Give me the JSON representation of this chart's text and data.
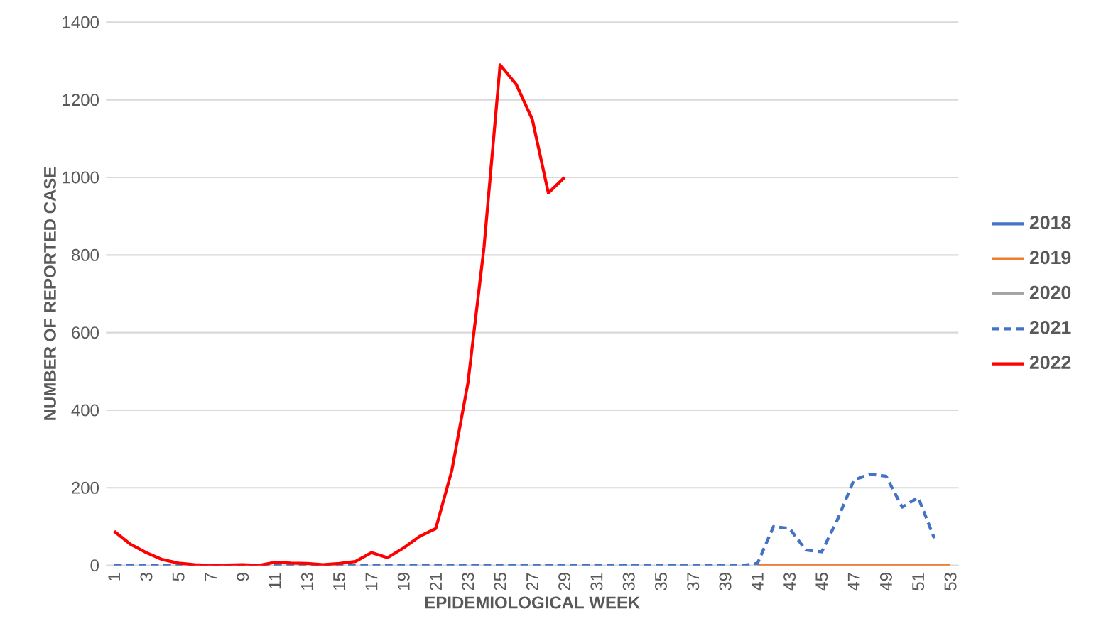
{
  "chart_data": {
    "type": "line",
    "xlabel": "EPIDEMIOLOGICAL WEEK",
    "ylabel": "NUMBER OF REPORTED CASE",
    "categories": [
      "1",
      null,
      "3",
      null,
      "5",
      null,
      "7",
      null,
      "9",
      null,
      "11",
      null,
      "13",
      null,
      "15",
      null,
      "17",
      null,
      "19",
      null,
      "21",
      null,
      "23",
      null,
      "25",
      null,
      "27",
      null,
      "29",
      null,
      "31",
      null,
      "33",
      null,
      "35",
      null,
      "37",
      null,
      "39",
      null,
      "41",
      null,
      "43",
      null,
      "45",
      null,
      "47",
      null,
      "49",
      null,
      "51",
      null,
      "53"
    ],
    "series": [
      {
        "name": "2018",
        "color": "#4472c4",
        "line_style": "solid",
        "values": [
          null,
          null,
          null,
          null,
          null,
          null,
          null,
          null,
          null,
          null,
          null,
          null,
          null,
          null,
          null,
          null,
          null,
          null,
          null,
          null,
          null,
          null,
          null,
          null,
          null,
          null,
          null,
          null,
          null,
          null,
          null,
          null,
          null,
          null,
          null,
          null,
          null,
          null,
          null,
          null,
          null,
          null,
          null,
          null,
          null,
          null,
          null,
          null,
          null,
          null,
          null,
          null,
          null
        ]
      },
      {
        "name": "2019",
        "color": "#ed7d31",
        "line_style": "solid",
        "values": [
          null,
          null,
          null,
          null,
          null,
          null,
          null,
          null,
          null,
          null,
          null,
          null,
          null,
          null,
          null,
          null,
          null,
          null,
          null,
          null,
          null,
          null,
          null,
          null,
          null,
          null,
          null,
          null,
          null,
          null,
          null,
          null,
          null,
          null,
          null,
          null,
          null,
          null,
          null,
          null,
          0,
          0,
          0,
          0,
          0,
          0,
          0,
          0,
          0,
          0,
          0,
          0,
          0
        ]
      },
      {
        "name": "2020",
        "color": "#a5a5a5",
        "line_style": "solid",
        "values": [
          null,
          null,
          null,
          null,
          null,
          null,
          null,
          null,
          null,
          null,
          null,
          null,
          null,
          null,
          null,
          null,
          null,
          null,
          null,
          null,
          null,
          null,
          null,
          null,
          null,
          null,
          null,
          null,
          null,
          null,
          null,
          null,
          null,
          null,
          null,
          null,
          null,
          null,
          null,
          null,
          null,
          null,
          null,
          null,
          null,
          null,
          null,
          null,
          null,
          null,
          null,
          null,
          null
        ]
      },
      {
        "name": "2021",
        "color": "#4472c4",
        "line_style": "dashed",
        "values": [
          0,
          0,
          0,
          0,
          0,
          0,
          0,
          0,
          0,
          0,
          0,
          0,
          0,
          0,
          0,
          0,
          0,
          0,
          0,
          0,
          0,
          0,
          0,
          0,
          0,
          0,
          0,
          0,
          0,
          0,
          0,
          0,
          0,
          0,
          0,
          0,
          0,
          0,
          0,
          0,
          5,
          100,
          95,
          40,
          35,
          120,
          220,
          235,
          230,
          150,
          175,
          70,
          null
        ]
      },
      {
        "name": "2022",
        "color": "#ff0000",
        "line_style": "solid",
        "values": [
          88,
          55,
          33,
          15,
          6,
          2,
          0,
          1,
          2,
          0,
          8,
          6,
          5,
          2,
          5,
          10,
          33,
          20,
          45,
          75,
          95,
          245,
          470,
          820,
          1290,
          1240,
          1150,
          960,
          1000,
          null,
          null,
          null,
          null,
          null,
          null,
          null,
          null,
          null,
          null,
          null,
          null,
          null,
          null,
          null,
          null,
          null,
          null,
          null,
          null,
          null,
          null,
          null,
          null
        ]
      }
    ],
    "ylim": [
      0,
      1400
    ],
    "yticks": [
      0,
      200,
      400,
      600,
      800,
      1000,
      1200,
      1400
    ],
    "grid": "y",
    "legend": "right"
  }
}
